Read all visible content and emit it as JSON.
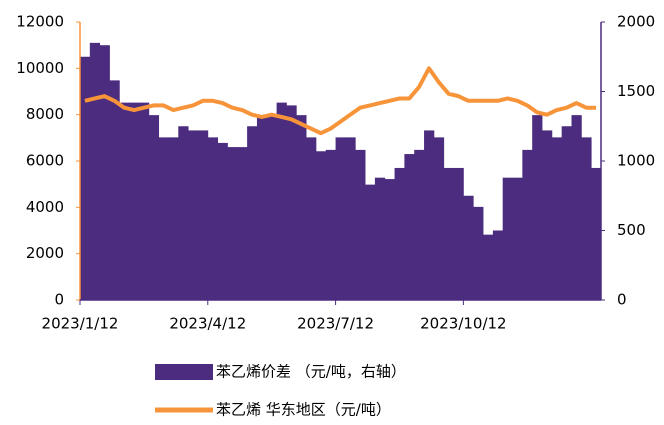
{
  "chart_data": {
    "type": "combo",
    "categories": [
      "2023/1/12",
      null,
      null,
      null,
      null,
      null,
      null,
      null,
      null,
      null,
      null,
      null,
      null,
      "2023/4/12",
      null,
      null,
      null,
      null,
      null,
      null,
      null,
      null,
      null,
      null,
      null,
      null,
      "2023/7/12",
      null,
      null,
      null,
      null,
      null,
      null,
      null,
      null,
      null,
      null,
      null,
      null,
      "2023/10/12",
      null,
      null,
      null,
      null,
      null,
      null,
      null,
      null,
      null,
      null,
      null,
      null,
      null
    ],
    "series": [
      {
        "name": "苯乙烯价差 （元/吨，右轴）",
        "type": "bar",
        "axis": "y2",
        "color": "#4b2c7f",
        "values": [
          1750,
          1850,
          1833,
          1580,
          1420,
          1420,
          1420,
          1330,
          1170,
          1170,
          1250,
          1220,
          1220,
          1170,
          1130,
          1100,
          1100,
          1250,
          1330,
          1330,
          1420,
          1400,
          1330,
          1170,
          1070,
          1080,
          1170,
          1170,
          1080,
          830,
          880,
          870,
          950,
          1050,
          1080,
          1220,
          1170,
          950,
          950,
          750,
          670,
          470,
          500,
          880,
          880,
          1080,
          1330,
          1220,
          1170,
          1250,
          1330,
          1170,
          950
        ]
      },
      {
        "name": "苯乙烯 华东地区（元/吨）",
        "type": "line",
        "color": "#f7943a",
        "values": [
          8600,
          8700,
          8800,
          8600,
          8300,
          8200,
          8300,
          8400,
          8400,
          8200,
          8300,
          8400,
          8600,
          8600,
          8500,
          8300,
          8200,
          8000,
          7900,
          8000,
          7900,
          7800,
          7600,
          7400,
          7200,
          7400,
          7700,
          8000,
          8300,
          8400,
          8500,
          8600,
          8700,
          8700,
          9200,
          10000,
          9400,
          8900,
          8800,
          8600,
          8600,
          8600,
          8600,
          8700,
          8600,
          8400,
          8100,
          8000,
          8200,
          8300,
          8500,
          8300,
          8300
        ]
      }
    ],
    "ylim": [
      0,
      12000
    ],
    "yticks": [
      0,
      2000,
      4000,
      6000,
      8000,
      10000,
      12000
    ],
    "y2lim": [
      0,
      2000
    ],
    "y2ticks": [
      0,
      500,
      1000,
      1500,
      2000
    ]
  }
}
